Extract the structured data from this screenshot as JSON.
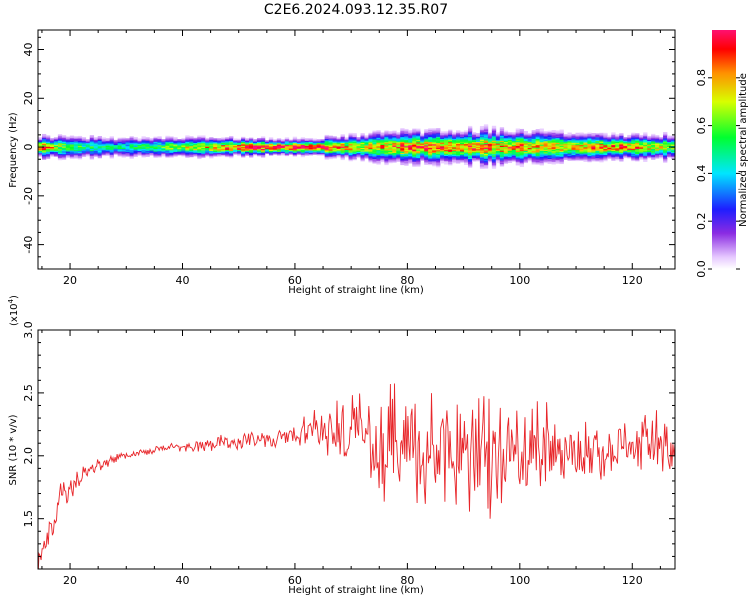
{
  "title": "C2E6.2024.093.12.35.R07",
  "chart_data": [
    {
      "type": "heatmap",
      "xlabel": "Height of straight line (km)",
      "ylabel": "Frequency (Hz)",
      "xlim": [
        14.3,
        127.6
      ],
      "ylim": [
        -50,
        48
      ],
      "xticks": [
        20,
        40,
        60,
        80,
        100,
        120
      ],
      "yticks": [
        -40,
        -20,
        0,
        20,
        40
      ],
      "colorbar": {
        "label": "Normalized spectral amplitude",
        "range": [
          0.0,
          1.0
        ],
        "ticks": [
          0.0,
          0.2,
          0.4,
          0.6,
          0.8
        ],
        "colormap": "rainbow (violet-blue-cyan-green-yellow-red-magenta)"
      },
      "band": {
        "center_hz": 0,
        "half_width_hz": [
          [
            14.3,
            3.5
          ],
          [
            40,
            3
          ],
          [
            60,
            2.5
          ],
          [
            75,
            4.5
          ],
          [
            95,
            5.5
          ],
          [
            110,
            4
          ],
          [
            127.6,
            4
          ]
        ],
        "peak_amplitude": [
          [
            14.3,
            0.85
          ],
          [
            20,
            0.55
          ],
          [
            30,
            0.45
          ],
          [
            45,
            0.75
          ],
          [
            50,
            0.9
          ],
          [
            60,
            0.95
          ],
          [
            65,
            0.9
          ],
          [
            72,
            0.7
          ],
          [
            80,
            0.85
          ],
          [
            90,
            0.85
          ],
          [
            100,
            0.8
          ],
          [
            110,
            0.75
          ],
          [
            120,
            0.85
          ],
          [
            127.6,
            0.6
          ]
        ]
      }
    },
    {
      "type": "line",
      "xlabel": "Height of straight line (km)",
      "ylabel": "SNR (10 * v/v)",
      "yscale_label": "(x10",
      "yscale_exp": "4",
      "yscale_close": ")",
      "xlim": [
        14.3,
        127.6
      ],
      "ylim": [
        1.1,
        3.0
      ],
      "xticks": [
        20,
        40,
        60,
        80,
        100,
        120
      ],
      "yticks": [
        1.5,
        2.0,
        2.5,
        3.0
      ],
      "series": [
        {
          "color": "#e8262a",
          "x": [
            14.3,
            16,
            18,
            20,
            22,
            25,
            28,
            30,
            35,
            40,
            45,
            50,
            55,
            60,
            65,
            70,
            75,
            80,
            85,
            90,
            95,
            100,
            105,
            110,
            115,
            120,
            125,
            127.6
          ],
          "mean": [
            1.2,
            1.35,
            1.6,
            1.75,
            1.85,
            1.92,
            1.98,
            2.0,
            2.05,
            2.07,
            2.09,
            2.12,
            2.13,
            2.15,
            2.2,
            2.2,
            2.1,
            2.05,
            2.05,
            2.05,
            2.0,
            2.03,
            2.05,
            2.05,
            2.06,
            2.05,
            2.1,
            2.05
          ],
          "amp": [
            0.15,
            0.15,
            0.15,
            0.1,
            0.06,
            0.05,
            0.04,
            0.03,
            0.03,
            0.03,
            0.05,
            0.06,
            0.06,
            0.08,
            0.18,
            0.25,
            0.45,
            0.55,
            0.4,
            0.45,
            0.5,
            0.35,
            0.3,
            0.25,
            0.2,
            0.2,
            0.25,
            0.2
          ]
        }
      ]
    }
  ]
}
